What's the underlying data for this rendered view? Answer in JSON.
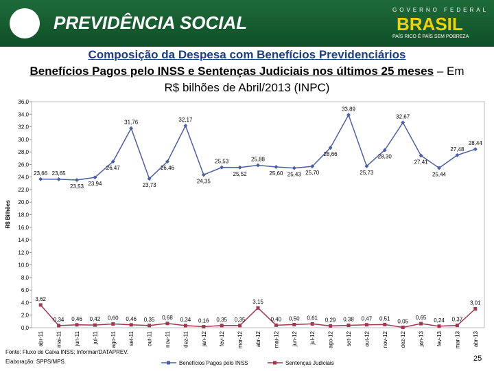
{
  "header": {
    "brand": "PREVIDÊNCIA SOCIAL",
    "gov": "GOVERNO FEDERAL",
    "country": "BRASIL",
    "motto": "PAÍS RICO É PAÍS SEM POBREZA"
  },
  "chart_data": {
    "type": "line",
    "title": "Composição da Despesa com Benefícios Previdenciários",
    "subtitle": "Benefícios Pagos pelo INSS e Sentenças Judiciais nos últimos 25 meses",
    "subtitle_note": "– Em R$ bilhões de Abril/2013 (INPC)",
    "y_label": "R$ Bilhões",
    "categories": [
      "abr-11",
      "mai-11",
      "jun-11",
      "jul-11",
      "ago-11",
      "set-11",
      "out-11",
      "nov-11",
      "dez-11",
      "jan-12",
      "fev-12",
      "mar-12",
      "abr-12",
      "mai-12",
      "jun-12",
      "jul-12",
      "ago-12",
      "set-12",
      "out-12",
      "nov-12",
      "dez-12",
      "jan-13",
      "fev-13",
      "mar-13",
      "abr-13"
    ],
    "series": [
      {
        "name": "Benefícios Pagos pelo INSS",
        "color": "#4a5fa8",
        "values": [
          23.66,
          23.65,
          23.53,
          23.94,
          26.47,
          31.76,
          23.73,
          26.46,
          32.17,
          24.35,
          25.53,
          25.52,
          25.88,
          25.6,
          25.43,
          25.7,
          28.66,
          33.89,
          25.73,
          28.3,
          32.67,
          27.41,
          25.44,
          27.48,
          28.44
        ],
        "value_labels": [
          "23,66",
          "23,65",
          "23,53",
          "23,94",
          "26,47",
          "31,76",
          "23,73",
          "26,46",
          "32,17",
          "24,35",
          "25,53",
          "25,52",
          "25,88",
          "25,60",
          "25,43",
          "25,70",
          "28,66",
          "33,89",
          "25,73",
          "28,30",
          "32,67",
          "27,41",
          "25,44",
          "27,48",
          "28,44"
        ]
      },
      {
        "name": "Sentenças Judiciais",
        "color": "#a3354f",
        "values": [
          3.62,
          0.34,
          0.46,
          0.42,
          0.6,
          0.46,
          0.35,
          0.68,
          0.34,
          0.16,
          0.35,
          0.35,
          3.15,
          0.4,
          0.5,
          0.61,
          0.29,
          0.38,
          0.47,
          0.51,
          0.05,
          0.65,
          0.24,
          0.37,
          3.01
        ],
        "value_labels": [
          "3,62",
          "0,34",
          "0,46",
          "0,42",
          "0,60",
          "0,46",
          "0,35",
          "0,68",
          "0,34",
          "0,16",
          "0,35",
          "0,35",
          "3,15",
          "0,40",
          "0,50",
          "0,61",
          "0,29",
          "0,38",
          "0,47",
          "0,51",
          "0,05",
          "0,65",
          "0,24",
          "0,37",
          "3,01"
        ]
      }
    ],
    "ylim": [
      0,
      36
    ],
    "yticks": [
      {
        "value": 0,
        "label": "0,0"
      },
      {
        "value": 2,
        "label": "2,0"
      },
      {
        "value": 4,
        "label": "4,0"
      },
      {
        "value": 6,
        "label": "6,0"
      },
      {
        "value": 8,
        "label": "8,0"
      },
      {
        "value": 10,
        "label": "10,0"
      },
      {
        "value": 12,
        "label": "12,0"
      },
      {
        "value": 14,
        "label": "14,0"
      },
      {
        "value": 16,
        "label": "16,0"
      },
      {
        "value": 18,
        "label": "18,0"
      },
      {
        "value": 20,
        "label": "20,0"
      },
      {
        "value": 22,
        "label": "22,0"
      },
      {
        "value": 24,
        "label": "24,0"
      },
      {
        "value": 26,
        "label": "26,0"
      },
      {
        "value": 28,
        "label": "28,0"
      },
      {
        "value": 30,
        "label": "30,0"
      },
      {
        "value": 32,
        "label": "32,0"
      },
      {
        "value": 34,
        "label": "34,0"
      },
      {
        "value": 36,
        "label": "36,0"
      }
    ]
  },
  "footer": {
    "source": "Fonte: Fluxo de Caixa INSS; Informar/DATAPREV.",
    "credit": "Elaboração: SPPS/MPS.",
    "page": "25"
  }
}
